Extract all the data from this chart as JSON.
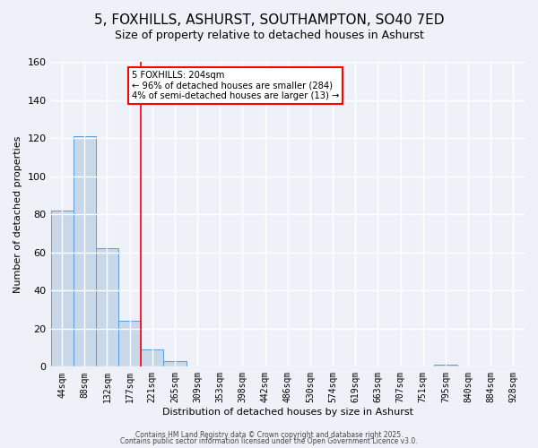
{
  "title": "5, FOXHILLS, ASHURST, SOUTHAMPTON, SO40 7ED",
  "subtitle": "Size of property relative to detached houses in Ashurst",
  "xlabel": "Distribution of detached houses by size in Ashurst",
  "ylabel": "Number of detached properties",
  "bar_color": "#c8d8e8",
  "bar_edge_color": "#5b9bd5",
  "categories": [
    "44sqm",
    "88sqm",
    "132sqm",
    "177sqm",
    "221sqm",
    "265sqm",
    "309sqm",
    "353sqm",
    "398sqm",
    "442sqm",
    "486sqm",
    "530sqm",
    "574sqm",
    "619sqm",
    "663sqm",
    "707sqm",
    "751sqm",
    "795sqm",
    "840sqm",
    "884sqm",
    "928sqm"
  ],
  "values": [
    82,
    121,
    62,
    24,
    9,
    3,
    0,
    0,
    0,
    0,
    0,
    0,
    0,
    0,
    0,
    0,
    0,
    1,
    0,
    0,
    0
  ],
  "ylim": [
    0,
    160
  ],
  "yticks": [
    0,
    20,
    40,
    60,
    80,
    100,
    120,
    140,
    160
  ],
  "red_line_index": 4,
  "annotation_text": "5 FOXHILLS: 204sqm\n← 96% of detached houses are smaller (284)\n4% of semi-detached houses are larger (13) →",
  "footer_line1": "Contains HM Land Registry data © Crown copyright and database right 2025.",
  "footer_line2": "Contains public sector information licensed under the Open Government Licence v3.0.",
  "background_color": "#eef2f8",
  "grid_color": "#ffffff",
  "title_fontsize": 11,
  "subtitle_fontsize": 9,
  "axis_label_fontsize": 8,
  "tick_fontsize": 7
}
